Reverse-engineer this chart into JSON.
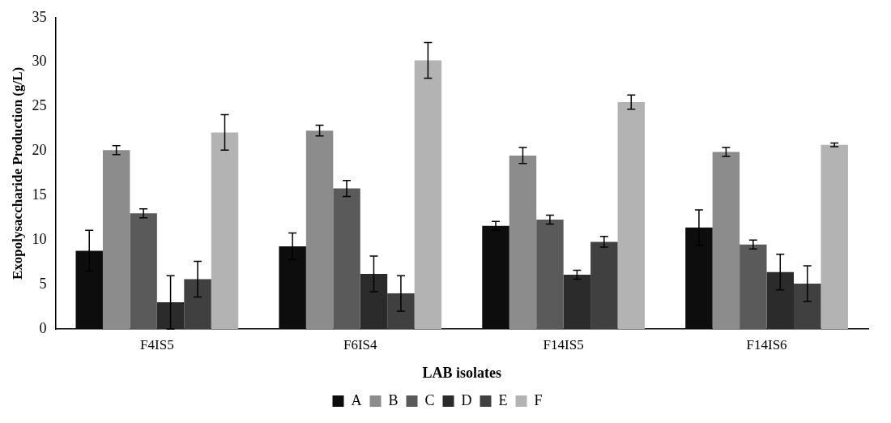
{
  "chart_data": {
    "type": "bar",
    "xlabel": "LAB isolates",
    "ylabel": "Exopolysaccharide Production (g/L)",
    "categories": [
      "F4IS5",
      "F6IS4",
      "F14IS5",
      "F14IS6"
    ],
    "series": [
      {
        "name": "A",
        "color": "#0d0d0d",
        "values": [
          8.8,
          9.3,
          11.6,
          11.4
        ],
        "errors": [
          2.3,
          1.5,
          0.5,
          2.0
        ]
      },
      {
        "name": "B",
        "color": "#8c8c8c",
        "values": [
          20.1,
          22.3,
          19.5,
          19.9
        ],
        "errors": [
          0.5,
          0.6,
          0.9,
          0.5
        ]
      },
      {
        "name": "C",
        "color": "#5a5a5a",
        "values": [
          13.0,
          15.8,
          12.3,
          9.5
        ],
        "errors": [
          0.5,
          0.9,
          0.5,
          0.5
        ]
      },
      {
        "name": "D",
        "color": "#2b2b2b",
        "values": [
          3.0,
          6.2,
          6.1,
          6.4
        ],
        "errors": [
          3.0,
          2.0,
          0.5,
          2.0
        ]
      },
      {
        "name": "E",
        "color": "#404040",
        "values": [
          5.6,
          4.0,
          9.8,
          5.1
        ],
        "errors": [
          2.0,
          2.0,
          0.6,
          2.0
        ]
      },
      {
        "name": "F",
        "color": "#b3b3b3",
        "values": [
          22.1,
          30.2,
          25.5,
          20.7
        ],
        "errors": [
          2.0,
          2.0,
          0.8,
          0.2
        ]
      }
    ],
    "ylim": [
      0,
      35
    ],
    "yticks": [
      0,
      5,
      10,
      15,
      20,
      25,
      30,
      35
    ],
    "grid": false,
    "legend": "bottom"
  }
}
